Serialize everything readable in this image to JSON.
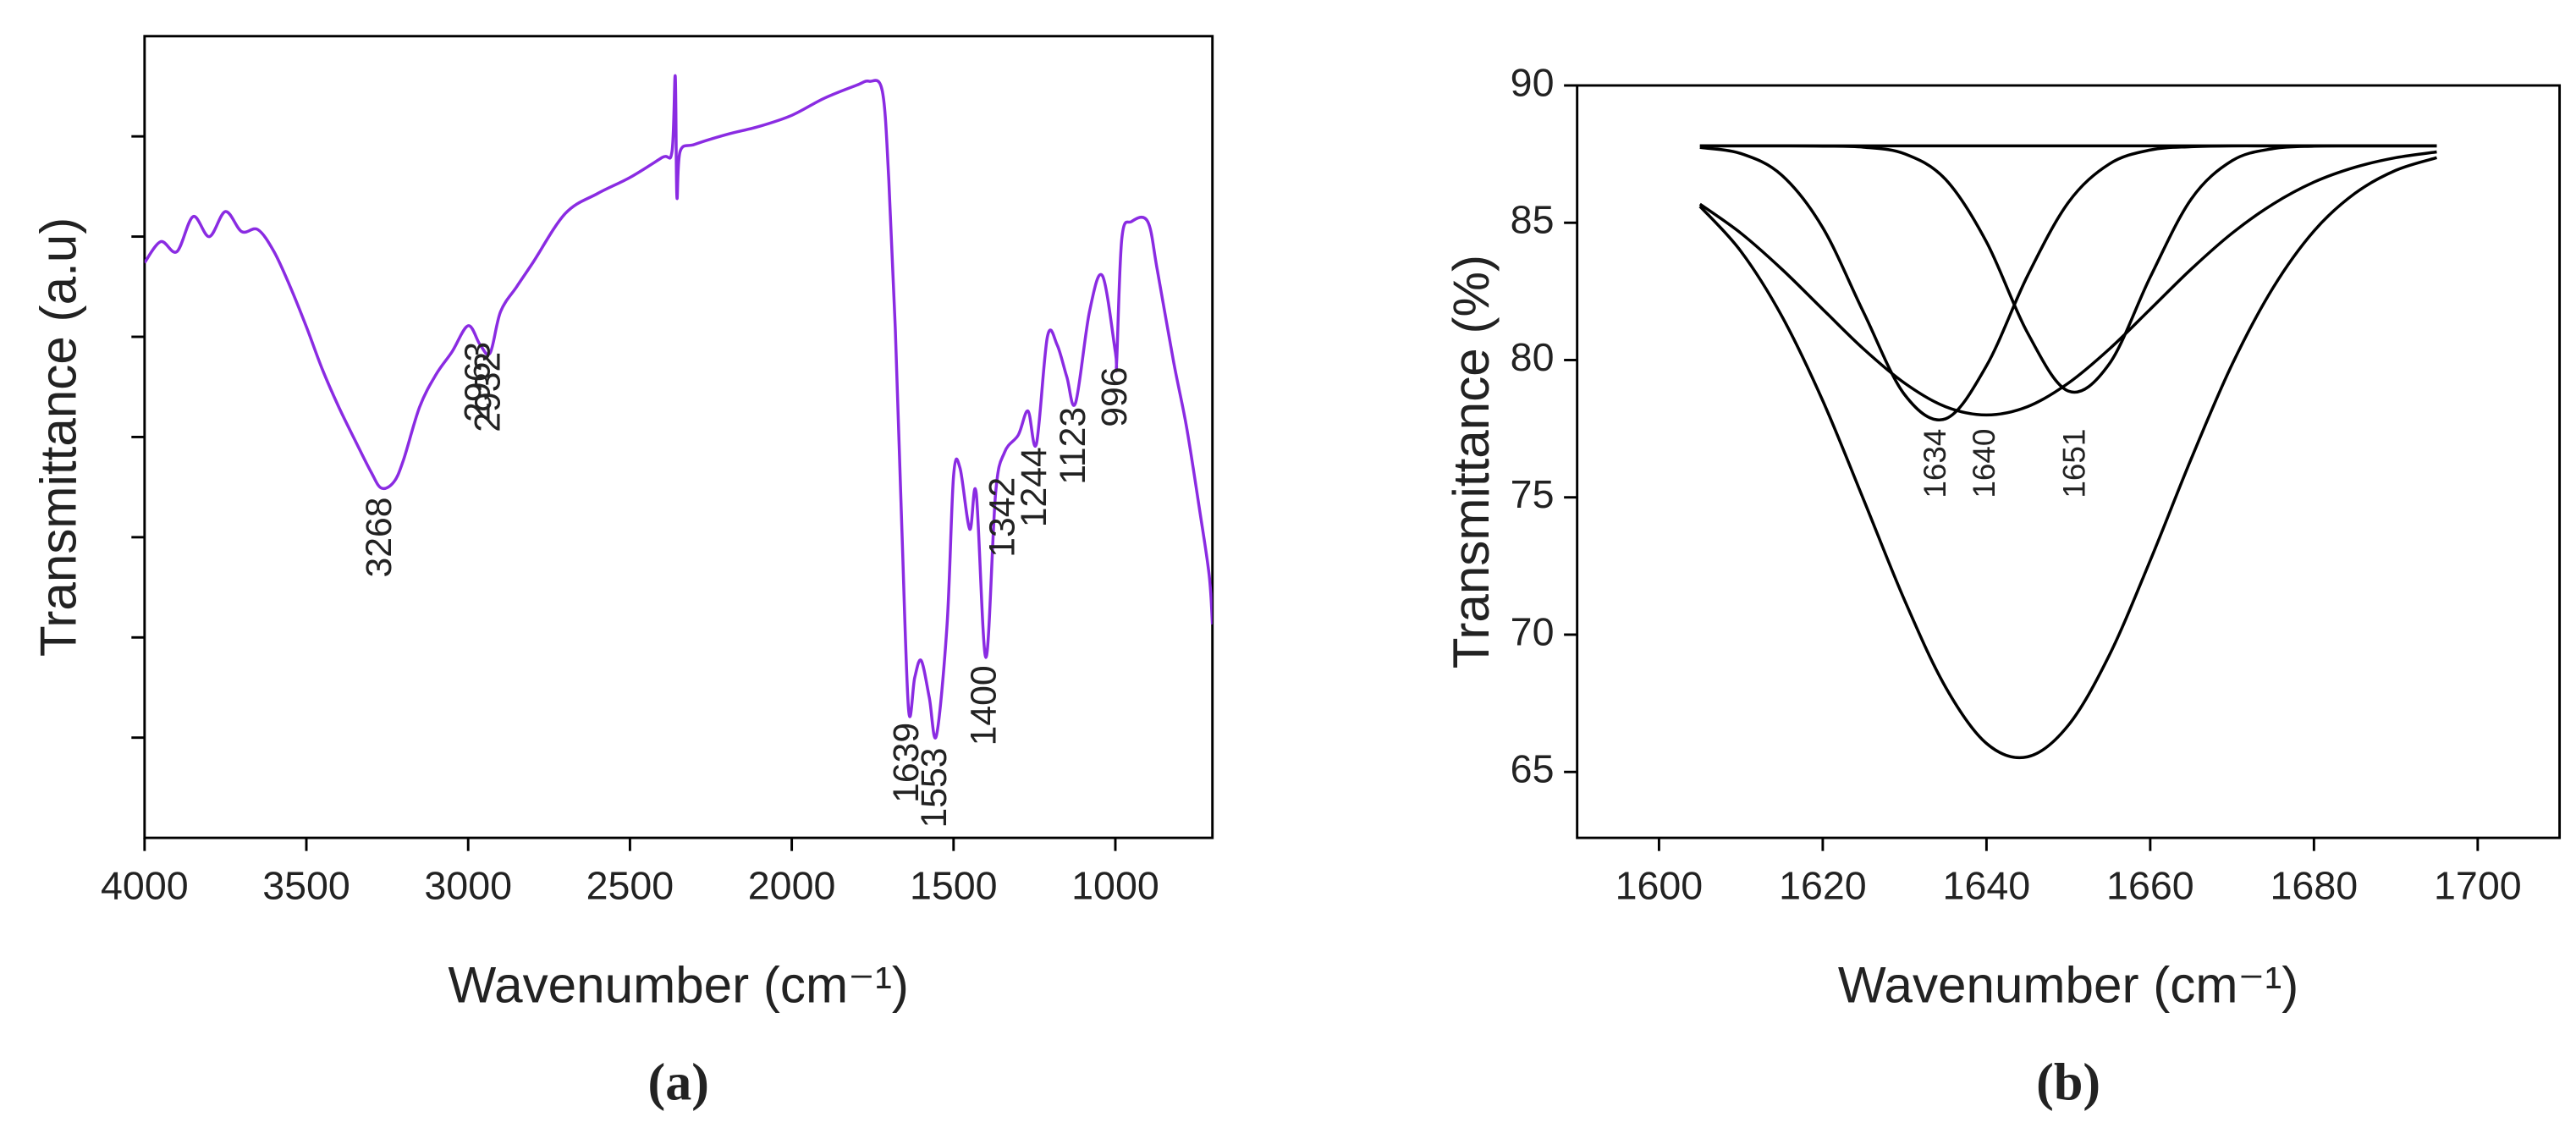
{
  "chart_data": [
    {
      "type": "line",
      "panel_label": "(a)",
      "xlabel": "Wavenumber (cm⁻¹)",
      "ylabel": "Transmittance (a.u)",
      "xlim": [
        4000,
        700
      ],
      "xticks": [
        4000,
        3500,
        3000,
        2500,
        2000,
        1500,
        1000
      ],
      "ylim": [
        0,
        8
      ],
      "yticks": [
        1,
        2,
        3,
        4,
        5,
        6,
        7
      ],
      "color": "#8a2be2",
      "x": [
        4000,
        3950,
        3900,
        3850,
        3800,
        3750,
        3700,
        3650,
        3600,
        3550,
        3500,
        3450,
        3400,
        3350,
        3300,
        3268,
        3230,
        3200,
        3150,
        3100,
        3050,
        3000,
        2963,
        2932,
        2900,
        2850,
        2800,
        2700,
        2600,
        2500,
        2400,
        2370,
        2360,
        2355,
        2345,
        2300,
        2200,
        2100,
        2000,
        1900,
        1800,
        1760,
        1720,
        1700,
        1680,
        1660,
        1639,
        1620,
        1600,
        1575,
        1553,
        1520,
        1500,
        1480,
        1450,
        1430,
        1400,
        1370,
        1342,
        1300,
        1270,
        1244,
        1210,
        1180,
        1150,
        1123,
        1080,
        1040,
        1000,
        996,
        980,
        950,
        900,
        870,
        820,
        780,
        740,
        710,
        700
      ],
      "values": [
        5.74,
        5.95,
        5.85,
        6.2,
        6.0,
        6.25,
        6.05,
        6.07,
        5.85,
        5.5,
        5.1,
        4.67,
        4.3,
        3.97,
        3.65,
        3.49,
        3.55,
        3.77,
        4.3,
        4.62,
        4.85,
        5.11,
        4.92,
        4.84,
        5.25,
        5.5,
        5.74,
        6.23,
        6.43,
        6.59,
        6.79,
        6.85,
        7.6,
        6.4,
        6.85,
        6.92,
        7.02,
        7.1,
        7.21,
        7.38,
        7.51,
        7.55,
        7.45,
        6.56,
        5.08,
        3.11,
        1.28,
        1.6,
        1.77,
        1.4,
        1.02,
        2.13,
        3.61,
        3.69,
        3.08,
        3.44,
        1.8,
        3.44,
        3.85,
        4.02,
        4.26,
        3.93,
        5.0,
        4.92,
        4.6,
        4.34,
        5.25,
        5.61,
        4.85,
        4.75,
        5.98,
        6.15,
        6.15,
        5.66,
        4.75,
        4.1,
        3.28,
        2.62,
        2.13
      ],
      "annotations": [
        {
          "text": "3268",
          "x": 3268,
          "y": 3.4
        },
        {
          "text": "2963",
          "x": 2963,
          "y": 4.95
        },
        {
          "text": "2932",
          "x": 2932,
          "y": 4.85
        },
        {
          "text": "1639",
          "x": 1639,
          "y": 1.15
        },
        {
          "text": "1553",
          "x": 1553,
          "y": 0.9
        },
        {
          "text": "1400",
          "x": 1400,
          "y": 1.72
        },
        {
          "text": "1342",
          "x": 1342,
          "y": 3.6
        },
        {
          "text": "1244",
          "x": 1244,
          "y": 3.9
        },
        {
          "text": "1123",
          "x": 1123,
          "y": 4.3
        },
        {
          "text": "996",
          "x": 996,
          "y": 4.7
        }
      ]
    },
    {
      "type": "line",
      "panel_label": "(b)",
      "xlabel": "Wavenumber (cm⁻¹)",
      "ylabel": "Transmittance (%)",
      "xlim": [
        1590,
        1710
      ],
      "xticks": [
        1600,
        1620,
        1640,
        1660,
        1680,
        1700
      ],
      "ylim": [
        62.6,
        90
      ],
      "yticks": [
        65,
        70,
        75,
        80,
        85,
        90
      ],
      "x": [
        1605,
        1610,
        1615,
        1620,
        1625,
        1630,
        1635,
        1640,
        1645,
        1650,
        1655,
        1660,
        1665,
        1670,
        1675,
        1680,
        1685,
        1690,
        1695
      ],
      "series": [
        {
          "color": "#000000",
          "values": [
            87.8,
            87.8,
            87.8,
            87.8,
            87.8,
            87.8,
            87.8,
            87.8,
            87.8,
            87.8,
            87.8,
            87.8,
            87.8,
            87.8,
            87.8,
            87.8,
            87.8,
            87.8,
            87.8
          ]
        },
        {
          "color": "#000000",
          "values": [
            87.74,
            87.52,
            86.73,
            84.82,
            81.73,
            78.74,
            77.86,
            79.79,
            83.06,
            85.74,
            87.14,
            87.65,
            87.77,
            87.8,
            87.8,
            87.8,
            87.8,
            87.8,
            87.8
          ]
        },
        {
          "color": "#000000",
          "values": [
            87.8,
            87.8,
            87.8,
            87.79,
            87.75,
            87.51,
            86.58,
            84.3,
            81.0,
            78.87,
            79.86,
            83.02,
            85.86,
            87.26,
            87.7,
            87.79,
            87.8,
            87.8,
            87.8
          ]
        },
        {
          "color": "#000000",
          "values": [
            85.68,
            84.62,
            83.31,
            81.85,
            80.4,
            79.16,
            78.3,
            78.0,
            78.3,
            79.16,
            80.4,
            81.85,
            83.31,
            84.62,
            85.68,
            86.48,
            87.02,
            87.37,
            87.58
          ]
        },
        {
          "color": "#000000",
          "values": [
            85.6,
            83.96,
            81.6,
            78.52,
            74.91,
            71.25,
            68.09,
            66.04,
            65.55,
            66.7,
            69.25,
            72.7,
            76.4,
            79.84,
            82.63,
            84.7,
            86.07,
            86.91,
            87.37
          ]
        }
      ],
      "annotations": [
        {
          "text": "1634",
          "x": 1634,
          "y": 77.5
        },
        {
          "text": "1640",
          "x": 1640,
          "y": 77.5
        },
        {
          "text": "1651",
          "x": 1651,
          "y": 77.5
        }
      ]
    }
  ]
}
